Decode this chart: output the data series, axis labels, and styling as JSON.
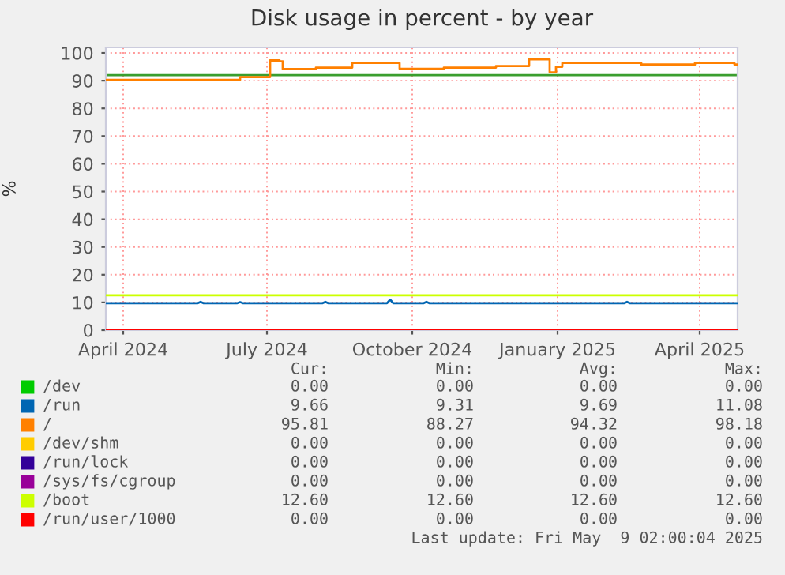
{
  "chart_data": {
    "type": "line",
    "title": "Disk usage in percent - by year",
    "ylabel": "%",
    "xlim": [
      "2024-03-21",
      "2025-04-25"
    ],
    "ylim": [
      0,
      102
    ],
    "yticks": [
      0,
      10,
      20,
      30,
      40,
      50,
      60,
      70,
      80,
      90,
      100
    ],
    "xticks": [
      {
        "value": "2024-04-01",
        "label": "April 2024"
      },
      {
        "value": "2024-07-01",
        "label": "July 2024"
      },
      {
        "value": "2024-10-01",
        "label": "October 2024"
      },
      {
        "value": "2025-01-01",
        "label": "January 2025"
      },
      {
        "value": "2025-04-01",
        "label": "April 2025"
      }
    ],
    "grid": true,
    "legend": "bottom",
    "ref_lines": [
      {
        "axis": "y",
        "value": 92,
        "color": "#3a9e2e"
      }
    ],
    "series": [
      {
        "name": "/dev",
        "color": "#00cc00"
      },
      {
        "name": "/run",
        "color": "#0066b3",
        "x": [
          "2024-03-21",
          "2024-05-18",
          "2024-05-20",
          "2024-05-22",
          "2024-06-12",
          "2024-06-14",
          "2024-06-16",
          "2024-08-05",
          "2024-08-07",
          "2024-08-09",
          "2024-09-15",
          "2024-09-17",
          "2024-09-19",
          "2024-10-08",
          "2024-10-10",
          "2024-10-12",
          "2025-02-12",
          "2025-02-14",
          "2025-02-16",
          "2025-04-25"
        ],
        "values": [
          9.7,
          9.7,
          10.2,
          9.7,
          9.7,
          10.1,
          9.7,
          9.7,
          10.2,
          9.7,
          9.7,
          11.0,
          9.7,
          9.7,
          10.2,
          9.7,
          9.7,
          10.2,
          9.7,
          9.7
        ]
      },
      {
        "name": "/",
        "color": "#ff8000",
        "type": "step",
        "x": [
          "2024-03-21",
          "2024-06-14",
          "2024-07-03",
          "2024-07-09",
          "2024-07-11",
          "2024-08-01",
          "2024-08-24",
          "2024-09-23",
          "2024-10-21",
          "2024-11-23",
          "2024-12-14",
          "2024-12-27",
          "2024-12-31",
          "2025-01-04",
          "2025-02-23",
          "2025-03-29",
          "2025-04-23",
          "2025-04-25"
        ],
        "values": [
          90.3,
          91.3,
          97.3,
          97.0,
          94.2,
          94.7,
          96.4,
          94.3,
          94.7,
          95.3,
          97.7,
          93.0,
          95.0,
          96.4,
          95.8,
          96.4,
          95.8,
          95.8
        ]
      },
      {
        "name": "/dev/shm",
        "color": "#ffcc00"
      },
      {
        "name": "/run/lock",
        "color": "#330099"
      },
      {
        "name": "/sys/fs/cgroup",
        "color": "#990099"
      },
      {
        "name": "/boot",
        "color": "#ccff00",
        "x": [
          "2024-03-21",
          "2025-04-25"
        ],
        "values": [
          12.6,
          12.6
        ]
      },
      {
        "name": "/run/user/1000",
        "color": "#ff0000",
        "x": [
          "2024-03-21",
          "2025-04-25"
        ],
        "values": [
          0,
          0
        ]
      }
    ],
    "annotations": [
      "Cur:",
      "Min:",
      "Avg:",
      "Max:",
      "0.00",
      "0.00",
      "0.00",
      "0.00",
      "9.66",
      "9.31",
      "9.69",
      "11.08",
      "95.81",
      "88.27",
      "94.32",
      "98.18",
      "0.00",
      "0.00",
      "0.00",
      "0.00",
      "0.00",
      "0.00",
      "0.00",
      "0.00",
      "0.00",
      "0.00",
      "0.00",
      "0.00",
      "12.60",
      "12.60",
      "12.60",
      "12.60",
      "0.00",
      "0.00",
      "0.00",
      "0.00",
      "Last update: Fri May  9 02:00:04 2025"
    ]
  }
}
